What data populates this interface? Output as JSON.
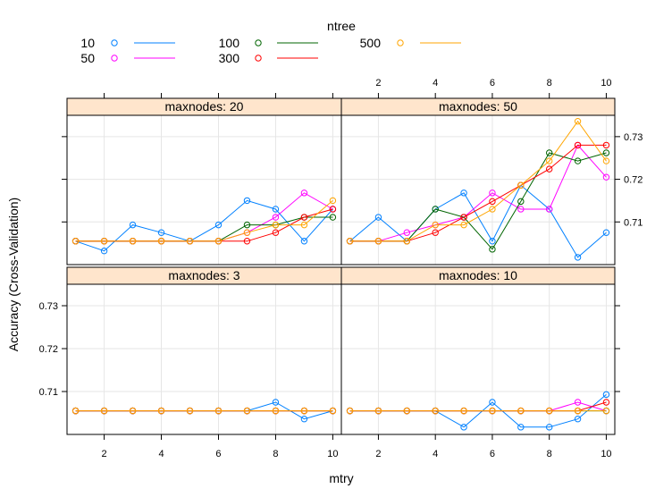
{
  "chart_data": {
    "type": "line",
    "xlabel": "mtry",
    "ylabel": "Accuracy (Cross-Validation)",
    "x": [
      1,
      2,
      3,
      4,
      5,
      6,
      7,
      8,
      9,
      10
    ],
    "xlim": [
      0.7,
      10.3
    ],
    "ylim": [
      0.7,
      0.735
    ],
    "x_ticks": [
      2,
      4,
      6,
      8,
      10
    ],
    "y_ticks": [
      0.71,
      0.72,
      0.73
    ],
    "grid": true,
    "legend": {
      "title": "ntree",
      "placement": "top",
      "entries": [
        {
          "label": "10",
          "color": "#0080ff"
        },
        {
          "label": "50",
          "color": "#ff00ff"
        },
        {
          "label": "100",
          "color": "#006400"
        },
        {
          "label": "300",
          "color": "#ff0000"
        },
        {
          "label": "500",
          "color": "#ffa500"
        }
      ]
    },
    "panels": [
      {
        "strip": "maxnodes: 20",
        "series": [
          {
            "name": "10",
            "values": [
              0.7055,
              0.7032,
              0.7093,
              0.7075,
              0.7055,
              0.7093,
              0.715,
              0.713,
              0.7055,
              0.713
            ]
          },
          {
            "name": "50",
            "values": [
              0.7055,
              0.7055,
              0.7055,
              0.7055,
              0.7055,
              0.7055,
              0.7075,
              0.7111,
              0.7168,
              0.713
            ]
          },
          {
            "name": "100",
            "values": [
              0.7055,
              0.7055,
              0.7055,
              0.7055,
              0.7055,
              0.7055,
              0.7093,
              0.7093,
              0.7111,
              0.7111
            ]
          },
          {
            "name": "300",
            "values": [
              0.7055,
              0.7055,
              0.7055,
              0.7055,
              0.7055,
              0.7055,
              0.7055,
              0.7075,
              0.7111,
              0.713
            ]
          },
          {
            "name": "500",
            "values": [
              0.7055,
              0.7055,
              0.7055,
              0.7055,
              0.7055,
              0.7055,
              0.7075,
              0.7093,
              0.7093,
              0.715
            ]
          }
        ]
      },
      {
        "strip": "maxnodes: 50",
        "series": [
          {
            "name": "10",
            "values": [
              0.7055,
              0.7111,
              0.7055,
              0.713,
              0.7168,
              0.7055,
              0.7186,
              0.713,
              0.7017,
              0.7075
            ]
          },
          {
            "name": "50",
            "values": [
              0.7055,
              0.7055,
              0.7075,
              0.7093,
              0.7111,
              0.7168,
              0.713,
              0.713,
              0.728,
              0.7205
            ]
          },
          {
            "name": "100",
            "values": [
              0.7055,
              0.7055,
              0.7055,
              0.713,
              0.7111,
              0.7036,
              0.7148,
              0.7262,
              0.7243,
              0.7262
            ]
          },
          {
            "name": "300",
            "values": [
              0.7055,
              0.7055,
              0.7055,
              0.7075,
              0.7111,
              0.7148,
              0.7186,
              0.7224,
              0.728,
              0.728
            ]
          },
          {
            "name": "500",
            "values": [
              0.7055,
              0.7055,
              0.7055,
              0.7093,
              0.7093,
              0.713,
              0.7186,
              0.7243,
              0.7336,
              0.7243
            ]
          }
        ]
      },
      {
        "strip": "maxnodes:  3",
        "series": [
          {
            "name": "10",
            "values": [
              0.7055,
              0.7055,
              0.7055,
              0.7055,
              0.7055,
              0.7055,
              0.7055,
              0.7075,
              0.7036,
              0.7055
            ]
          },
          {
            "name": "50",
            "values": [
              0.7055,
              0.7055,
              0.7055,
              0.7055,
              0.7055,
              0.7055,
              0.7055,
              0.7055,
              0.7055,
              0.7055
            ]
          },
          {
            "name": "100",
            "values": [
              0.7055,
              0.7055,
              0.7055,
              0.7055,
              0.7055,
              0.7055,
              0.7055,
              0.7055,
              0.7055,
              0.7055
            ]
          },
          {
            "name": "300",
            "values": [
              0.7055,
              0.7055,
              0.7055,
              0.7055,
              0.7055,
              0.7055,
              0.7055,
              0.7055,
              0.7055,
              0.7055
            ]
          },
          {
            "name": "500",
            "values": [
              0.7055,
              0.7055,
              0.7055,
              0.7055,
              0.7055,
              0.7055,
              0.7055,
              0.7055,
              0.7055,
              0.7055
            ]
          }
        ]
      },
      {
        "strip": "maxnodes: 10",
        "series": [
          {
            "name": "10",
            "values": [
              0.7055,
              0.7055,
              0.7055,
              0.7055,
              0.7017,
              0.7075,
              0.7017,
              0.7017,
              0.7036,
              0.7093
            ]
          },
          {
            "name": "50",
            "values": [
              0.7055,
              0.7055,
              0.7055,
              0.7055,
              0.7055,
              0.7055,
              0.7055,
              0.7055,
              0.7075,
              0.7055
            ]
          },
          {
            "name": "100",
            "values": [
              0.7055,
              0.7055,
              0.7055,
              0.7055,
              0.7055,
              0.7055,
              0.7055,
              0.7055,
              0.7055,
              0.7055
            ]
          },
          {
            "name": "300",
            "values": [
              0.7055,
              0.7055,
              0.7055,
              0.7055,
              0.7055,
              0.7055,
              0.7055,
              0.7055,
              0.7055,
              0.7075
            ]
          },
          {
            "name": "500",
            "values": [
              0.7055,
              0.7055,
              0.7055,
              0.7055,
              0.7055,
              0.7055,
              0.7055,
              0.7055,
              0.7055,
              0.7055
            ]
          }
        ]
      }
    ]
  }
}
